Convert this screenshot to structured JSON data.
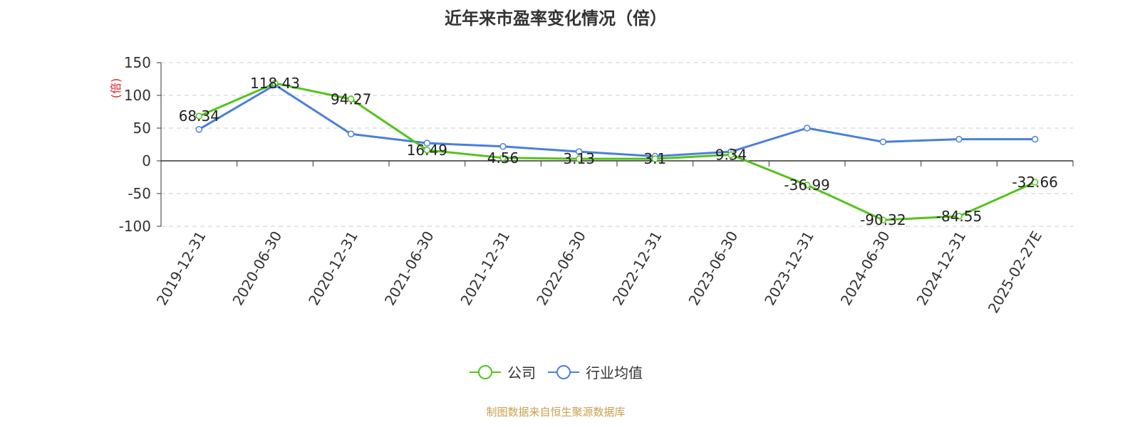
{
  "title": "近年来市盈率变化情况（倍）",
  "source": "制图数据来自恒生聚源数据库",
  "colors": {
    "company": "#52c41a",
    "industry": "#4a7fdc",
    "ylabel": "#e02020"
  },
  "chart_data": {
    "type": "line",
    "title": "近年来市盈率变化情况（倍）",
    "ylabel": "(倍)",
    "xlabel": "",
    "ylim": [
      -100,
      150
    ],
    "yticks": [
      150,
      100,
      50,
      0,
      -50,
      -100
    ],
    "grid": true,
    "legend_position": "bottom-center",
    "categories": [
      "2019-12-31",
      "2020-06-30",
      "2020-12-31",
      "2021-06-30",
      "2021-12-31",
      "2022-06-30",
      "2022-12-31",
      "2023-06-30",
      "2023-12-31",
      "2024-06-30",
      "2024-12-31",
      "2025-02-27E"
    ],
    "series": [
      {
        "name": "公司",
        "values": [
          68.34,
          118.43,
          94.27,
          16.49,
          4.56,
          3.13,
          3.1,
          9.34,
          -36.99,
          -90.32,
          -84.55,
          -32.66
        ],
        "labels": [
          "68.34",
          "118.43",
          "94.27",
          "16.49",
          "4.56",
          "3.13",
          "3.1",
          "9.34",
          "-36.99",
          "-90.32",
          "-84.55",
          "-32.66"
        ]
      },
      {
        "name": "行业均值",
        "values": [
          48,
          116,
          41,
          27,
          22,
          14,
          7,
          14,
          50,
          29,
          33,
          33
        ]
      }
    ]
  }
}
